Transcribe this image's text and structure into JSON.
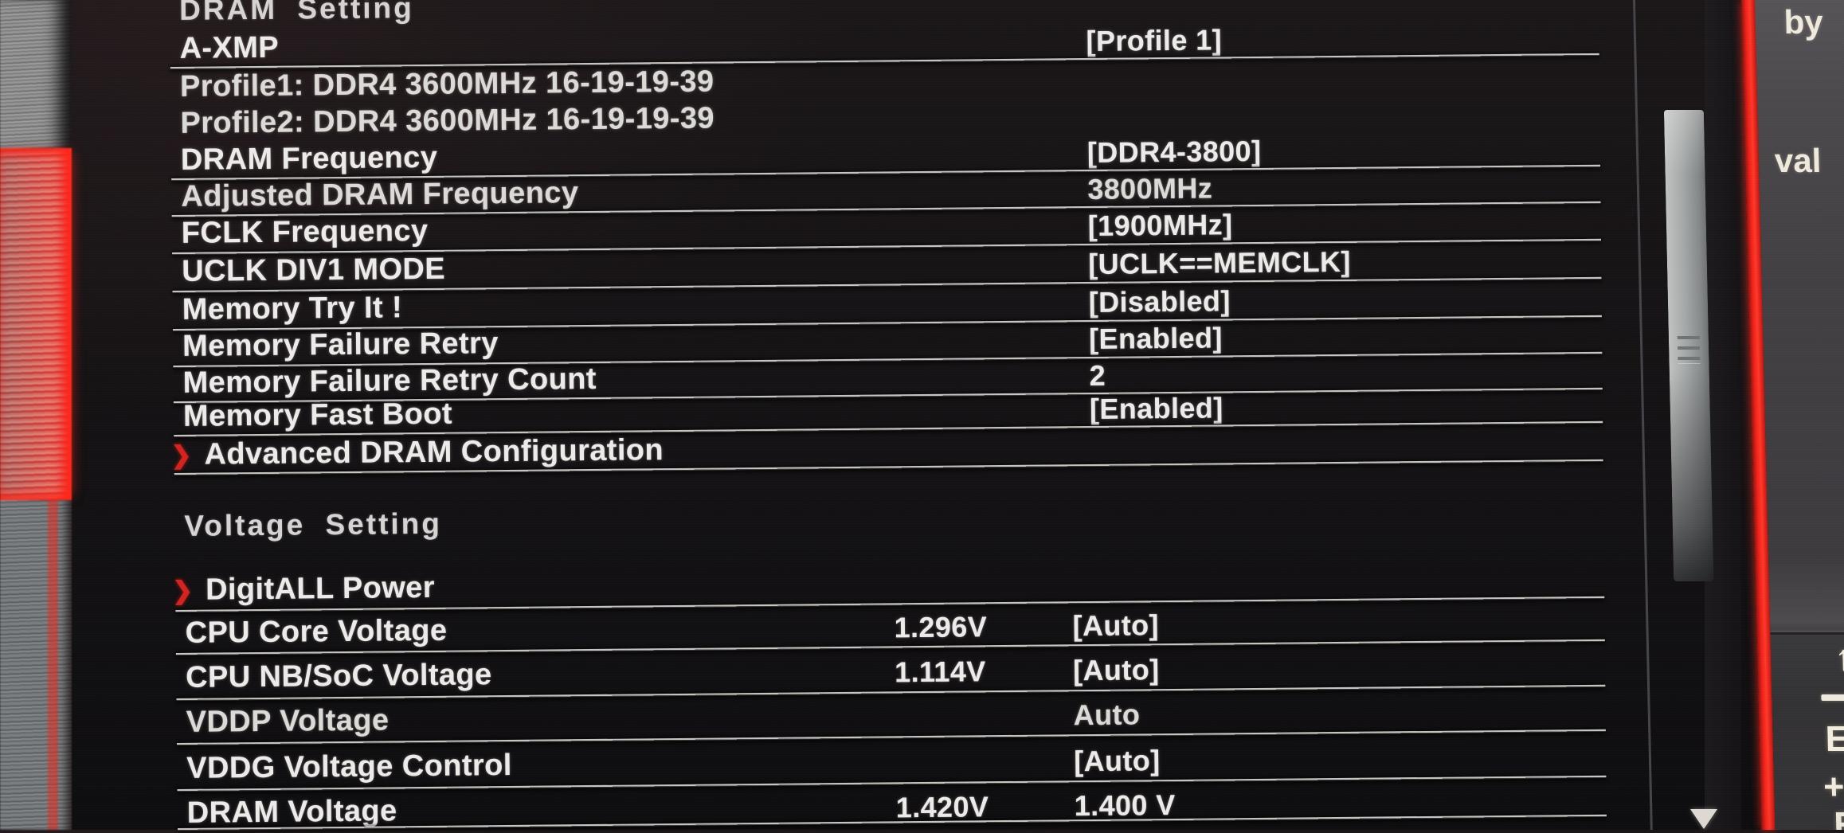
{
  "bios": {
    "sections": [
      {
        "title": "DRAM Setting",
        "rows": [
          {
            "label": "A-XMP",
            "value": "[Profile 1]",
            "kind": "setting"
          },
          {
            "label": "Profile1: DDR4 3600MHz 16-19-19-39",
            "kind": "info"
          },
          {
            "label": "Profile2: DDR4 3600MHz 16-19-19-39",
            "kind": "info"
          },
          {
            "label": "DRAM Frequency",
            "value": "[DDR4-3800]",
            "kind": "setting"
          },
          {
            "label": "Adjusted DRAM Frequency",
            "value": "3800MHz",
            "kind": "readonly"
          },
          {
            "label": "FCLK Frequency",
            "value": "[1900MHz]",
            "kind": "setting"
          },
          {
            "label": "UCLK DIV1 MODE",
            "value": "[UCLK==MEMCLK]",
            "kind": "setting"
          },
          {
            "label": "Memory Try It !",
            "value": "[Disabled]",
            "kind": "setting"
          },
          {
            "label": "Memory Failure Retry",
            "value": "[Enabled]",
            "kind": "setting"
          },
          {
            "label": "Memory Failure Retry Count",
            "value": "2",
            "kind": "setting"
          },
          {
            "label": "Memory Fast Boot",
            "value": "[Enabled]",
            "kind": "setting"
          },
          {
            "label": "Advanced DRAM Configuration",
            "kind": "submenu"
          }
        ]
      },
      {
        "title": "Voltage Setting",
        "rows": [
          {
            "label": "DigitALL Power",
            "kind": "submenu"
          },
          {
            "label": "CPU Core Voltage",
            "current": "1.296V",
            "value": "[Auto]",
            "kind": "setting"
          },
          {
            "label": "CPU NB/SoC Voltage",
            "current": "1.114V",
            "value": "[Auto]",
            "kind": "setting"
          },
          {
            "label": "VDDP Voltage",
            "value": "Auto",
            "kind": "readonly"
          },
          {
            "label": "VDDG Voltage Control",
            "value": "[Auto]",
            "kind": "setting"
          },
          {
            "label": "DRAM Voltage",
            "current": "1.420V",
            "value": "1.400 V",
            "kind": "setting"
          }
        ]
      }
    ]
  },
  "help_panel": {
    "text_line_1": "by",
    "text_line_2": "val",
    "key_hint_enter_fragment": "E",
    "key_hint_plus_fragment": "+",
    "key_hint_esc_fragment": "E"
  },
  "icons": {
    "submenu_arrow": "❯",
    "scroll_down_arrow": "▼",
    "key_up_arrow": "↑"
  },
  "colors": {
    "accent_red": "#e0211a",
    "text": "#edebe9",
    "help_panel_gray": "#424043"
  }
}
